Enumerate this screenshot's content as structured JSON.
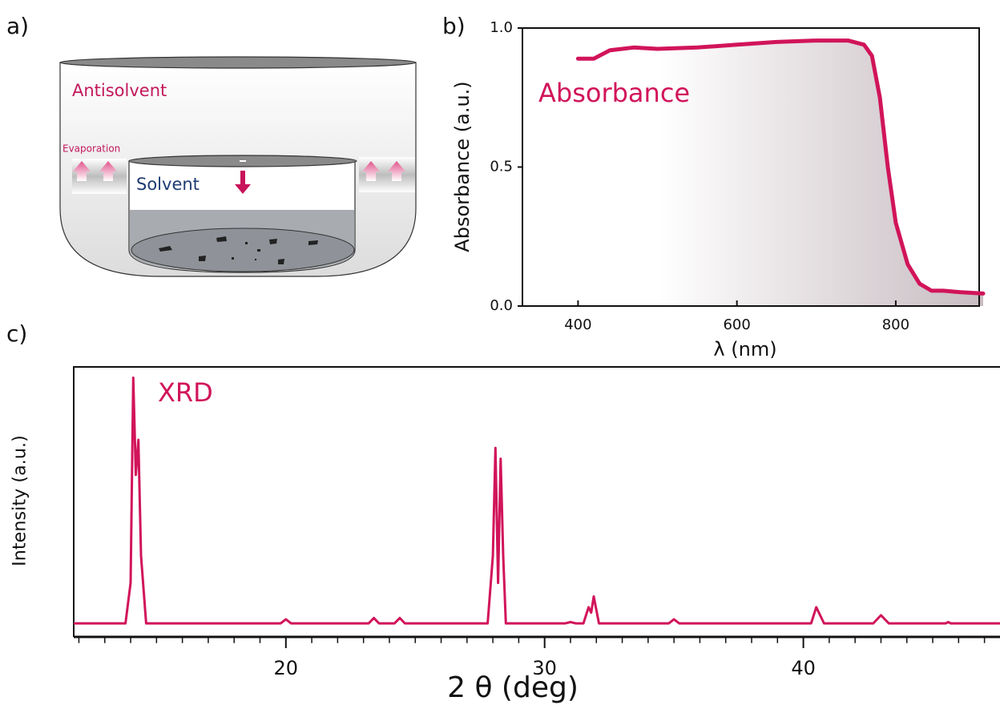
{
  "panel_labels": [
    "a)",
    "b)",
    "c)"
  ],
  "diagram": {
    "antisolvent_label": "Antisolvent",
    "evaporation_label": "Evaporation",
    "solvent_label": "Solvent"
  },
  "chart_data": [
    {
      "type": "line",
      "xlabel": "λ (nm)",
      "ylabel": "Absorbance (a.u.)",
      "x": [
        400,
        420,
        440,
        470,
        500,
        550,
        600,
        650,
        700,
        740,
        760,
        770,
        780,
        790,
        800,
        815,
        830,
        845,
        860,
        880,
        910
      ],
      "series": [
        {
          "name": "Absorbance",
          "color": "#d1145a",
          "values": [
            0.89,
            0.89,
            0.92,
            0.93,
            0.925,
            0.93,
            0.94,
            0.95,
            0.955,
            0.955,
            0.94,
            0.9,
            0.75,
            0.5,
            0.3,
            0.15,
            0.08,
            0.055,
            0.055,
            0.05,
            0.045
          ]
        }
      ],
      "xlim": [
        330,
        905
      ],
      "ylim": [
        0,
        1
      ],
      "xticks": [
        400,
        600,
        800
      ],
      "yticks": [
        {
          "value": 0,
          "label": "0.0"
        },
        0.5,
        {
          "value": 1,
          "label": "1.0"
        }
      ]
    },
    {
      "type": "line",
      "xlabel": "2 θ (deg)",
      "ylabel": "Intensity (a.u.)",
      "x": [
        11.8,
        13.8,
        14.0,
        14.1,
        14.2,
        14.3,
        14.4,
        14.6,
        16,
        19.8,
        20.0,
        20.2,
        23.2,
        23.4,
        23.6,
        24.2,
        24.4,
        24.6,
        27.8,
        28.0,
        28.1,
        28.2,
        28.3,
        28.4,
        28.5,
        28.7,
        30.8,
        31.0,
        31.2,
        31.5,
        31.7,
        31.8,
        31.9,
        32.1,
        34.8,
        35.0,
        35.2,
        40.3,
        40.5,
        40.8,
        42.7,
        42.9,
        43.0,
        43.1,
        43.3,
        45.5,
        45.6,
        45.7,
        47.6
      ],
      "series": [
        {
          "name": "XRD",
          "color": "#d1145a",
          "values": [
            5,
            5,
            20,
            96,
            60,
            73,
            30,
            5,
            5,
            5,
            6.5,
            5,
            5,
            7,
            5,
            5,
            7,
            5,
            5,
            30,
            70,
            20,
            66,
            30,
            5,
            5,
            5,
            5.5,
            5,
            5,
            11,
            9,
            15,
            5,
            5,
            6.5,
            5,
            5,
            11,
            5,
            5,
            7,
            8,
            7,
            5,
            5,
            5.5,
            5,
            5
          ]
        }
      ],
      "xlim": [
        11.8,
        47.6
      ],
      "ylim": [
        0,
        100
      ],
      "xticks": [
        20,
        30,
        40
      ],
      "xminorticks": [
        12,
        13,
        14,
        15,
        16,
        17,
        18,
        19,
        21,
        22,
        23,
        24,
        25,
        26,
        27,
        28,
        29,
        31,
        32,
        33,
        34,
        35,
        36,
        37,
        38,
        39,
        41,
        42,
        43,
        44,
        45,
        46,
        47
      ]
    }
  ]
}
